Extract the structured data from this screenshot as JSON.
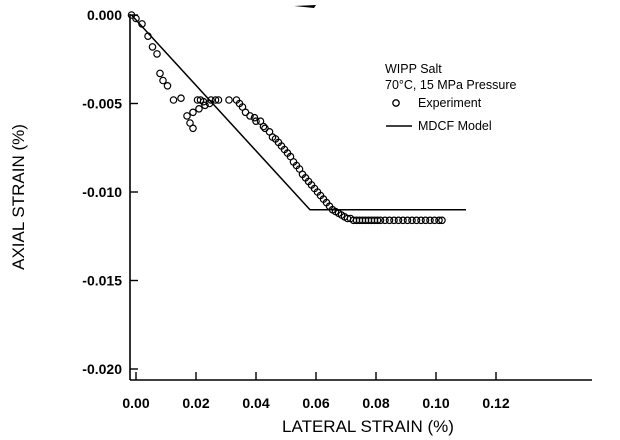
{
  "chart_data": {
    "type": "scatter",
    "title": "",
    "xlabel": "LATERAL STRAIN (%)",
    "ylabel": "AXIAL STRAIN (%)",
    "xlim": [
      -0.005,
      0.12
    ],
    "ylim": [
      -0.02,
      0.0
    ],
    "xticks": [
      0.0,
      0.02,
      0.04,
      0.06,
      0.08,
      0.1,
      0.12
    ],
    "xtick_labels": [
      "0.00",
      "0.02",
      "0.04",
      "0.06",
      "0.08",
      "0.10",
      "0.12"
    ],
    "yticks": [
      0.0,
      -0.005,
      -0.01,
      -0.015,
      -0.02
    ],
    "ytick_labels": [
      "0.000",
      "-0.005",
      "-0.010",
      "-0.015",
      "-0.020"
    ],
    "grid": false,
    "legend": {
      "placement": "top-right",
      "heading": [
        "WIPP Salt",
        "70°C, 15 MPa Pressure"
      ],
      "entries": [
        {
          "label": "Experiment",
          "marker": "open-circle"
        },
        {
          "label": "MDCF Model",
          "marker": "line"
        }
      ]
    },
    "series": [
      {
        "name": "Experiment",
        "style": "open-circle",
        "points": [
          [
            -0.0015,
            0.0
          ],
          [
            0.0,
            -0.0002
          ],
          [
            0.002,
            -0.0005
          ],
          [
            0.004,
            -0.0012
          ],
          [
            0.0055,
            -0.0018
          ],
          [
            0.007,
            -0.0022
          ],
          [
            0.008,
            -0.0033
          ],
          [
            0.009,
            -0.0037
          ],
          [
            0.0105,
            -0.004
          ],
          [
            0.0125,
            -0.0048
          ],
          [
            0.015,
            -0.0047
          ],
          [
            0.017,
            -0.0057
          ],
          [
            0.018,
            -0.0061
          ],
          [
            0.019,
            -0.0064
          ],
          [
            0.019,
            -0.0055
          ],
          [
            0.021,
            -0.0053
          ],
          [
            0.023,
            -0.0051
          ],
          [
            0.0205,
            -0.0048
          ],
          [
            0.0215,
            -0.0048
          ],
          [
            0.0225,
            -0.0049
          ],
          [
            0.0245,
            -0.005
          ],
          [
            0.025,
            -0.0048
          ],
          [
            0.0265,
            -0.0048
          ],
          [
            0.0275,
            -0.0048
          ],
          [
            0.031,
            -0.0048
          ],
          [
            0.0335,
            -0.0048
          ],
          [
            0.0345,
            -0.005
          ],
          [
            0.0355,
            -0.0052
          ],
          [
            0.0365,
            -0.0055
          ],
          [
            0.038,
            -0.0057
          ],
          [
            0.0395,
            -0.0058
          ],
          [
            0.04,
            -0.006
          ],
          [
            0.0415,
            -0.006
          ],
          [
            0.0425,
            -0.0063
          ],
          [
            0.043,
            -0.0064
          ],
          [
            0.0445,
            -0.0066
          ],
          [
            0.0455,
            -0.0069
          ],
          [
            0.0465,
            -0.007
          ],
          [
            0.0475,
            -0.0072
          ],
          [
            0.0485,
            -0.0074
          ],
          [
            0.0495,
            -0.0076
          ],
          [
            0.0505,
            -0.0078
          ],
          [
            0.0515,
            -0.008
          ],
          [
            0.0525,
            -0.0083
          ],
          [
            0.0535,
            -0.0085
          ],
          [
            0.0545,
            -0.0087
          ],
          [
            0.0555,
            -0.009
          ],
          [
            0.0565,
            -0.0092
          ],
          [
            0.0575,
            -0.0094
          ],
          [
            0.0585,
            -0.0096
          ],
          [
            0.0595,
            -0.0098
          ],
          [
            0.0605,
            -0.01
          ],
          [
            0.0615,
            -0.0102
          ],
          [
            0.0625,
            -0.0104
          ],
          [
            0.0635,
            -0.0106
          ],
          [
            0.0645,
            -0.0108
          ],
          [
            0.0655,
            -0.011
          ],
          [
            0.0665,
            -0.0111
          ],
          [
            0.0675,
            -0.0112
          ],
          [
            0.0685,
            -0.0113
          ],
          [
            0.0695,
            -0.0114
          ],
          [
            0.0705,
            -0.0115
          ],
          [
            0.0715,
            -0.0115
          ],
          [
            0.0725,
            -0.0116
          ],
          [
            0.0735,
            -0.0116
          ],
          [
            0.0745,
            -0.0116
          ],
          [
            0.0755,
            -0.0116
          ],
          [
            0.0765,
            -0.0116
          ],
          [
            0.0775,
            -0.0116
          ],
          [
            0.0785,
            -0.0116
          ],
          [
            0.0795,
            -0.0116
          ],
          [
            0.0805,
            -0.0116
          ],
          [
            0.0815,
            -0.0116
          ],
          [
            0.083,
            -0.0116
          ],
          [
            0.0845,
            -0.0116
          ],
          [
            0.086,
            -0.0116
          ],
          [
            0.0875,
            -0.0116
          ],
          [
            0.089,
            -0.0116
          ],
          [
            0.0905,
            -0.0116
          ],
          [
            0.092,
            -0.0116
          ],
          [
            0.0935,
            -0.0116
          ],
          [
            0.095,
            -0.0116
          ],
          [
            0.0965,
            -0.0116
          ],
          [
            0.098,
            -0.0116
          ],
          [
            0.0995,
            -0.0116
          ],
          [
            0.101,
            -0.0116
          ],
          [
            0.102,
            -0.0116
          ]
        ]
      },
      {
        "name": "MDCF Model",
        "style": "line",
        "points": [
          [
            -0.0015,
            0.0
          ],
          [
            0.058,
            -0.011
          ],
          [
            0.11,
            -0.011
          ]
        ]
      }
    ]
  }
}
